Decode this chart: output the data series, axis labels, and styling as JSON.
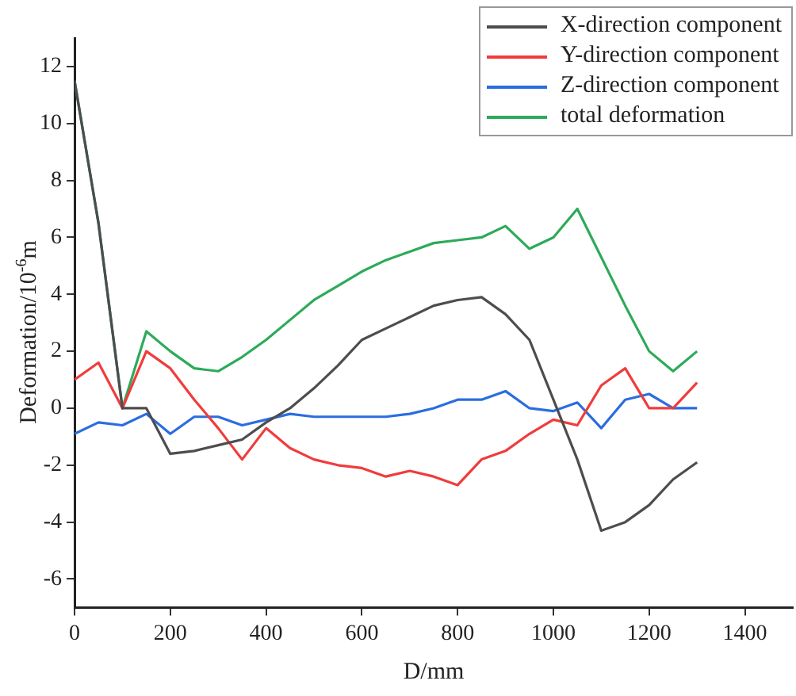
{
  "chart_data": {
    "type": "line",
    "xlabel": "D/mm",
    "ylabel": "Deformation/10$^{-6}$m",
    "x": [
      0,
      50,
      100,
      150,
      200,
      250,
      300,
      350,
      400,
      450,
      500,
      550,
      600,
      650,
      700,
      750,
      800,
      850,
      900,
      950,
      1000,
      1050,
      1100,
      1150,
      1200,
      1250,
      1300
    ],
    "series": [
      {
        "name": "X-direction component",
        "color": "#4d4d4d",
        "values": [
          11.5,
          6.5,
          0,
          0,
          -1.6,
          -1.5,
          -1.3,
          -1.1,
          -0.5,
          0,
          0.7,
          1.5,
          2.4,
          2.8,
          3.2,
          3.6,
          3.8,
          3.9,
          3.3,
          2.4,
          0.3,
          -1.8,
          -4.3,
          -4.0,
          -3.4,
          -2.5,
          -1.9
        ]
      },
      {
        "name": "Y-direction component",
        "color": "#f03c3c",
        "values": [
          1.0,
          1.6,
          0,
          2.0,
          1.4,
          0.3,
          -0.7,
          -1.8,
          -0.7,
          -1.4,
          -1.8,
          -2.0,
          -2.1,
          -2.4,
          -2.2,
          -2.4,
          -2.7,
          -1.8,
          -1.5,
          -0.9,
          -0.4,
          -0.6,
          0.8,
          1.4,
          0,
          0,
          0.9
        ]
      },
      {
        "name": "Z-direction component",
        "color": "#2a6de0",
        "values": [
          -0.9,
          -0.5,
          -0.6,
          -0.2,
          -0.9,
          -0.3,
          -0.3,
          -0.6,
          -0.4,
          -0.2,
          -0.3,
          -0.3,
          -0.3,
          -0.3,
          -0.2,
          0,
          0.3,
          0.3,
          0.6,
          0,
          -0.1,
          0.2,
          -0.7,
          0.3,
          0.5,
          0,
          0
        ]
      },
      {
        "name": "total deformation",
        "color": "#2daa5a",
        "values": [
          11.5,
          6.5,
          0,
          2.7,
          2.0,
          1.4,
          1.3,
          1.8,
          2.4,
          3.1,
          3.8,
          4.3,
          4.8,
          5.2,
          5.5,
          5.8,
          5.9,
          6.0,
          6.4,
          5.6,
          6.0,
          7.0,
          5.3,
          3.6,
          2.0,
          1.3,
          2.0
        ]
      }
    ],
    "xlim": [
      0,
      1500
    ],
    "xticks": [
      0,
      200,
      400,
      600,
      800,
      1000,
      1200,
      1400
    ],
    "ylim": [
      -7,
      13
    ],
    "yticks": [
      -6,
      -4,
      -2,
      0,
      2,
      4,
      6,
      8,
      10,
      12
    ],
    "grid": false,
    "legend": "top right",
    "marker": "none",
    "line_style": "solid"
  }
}
